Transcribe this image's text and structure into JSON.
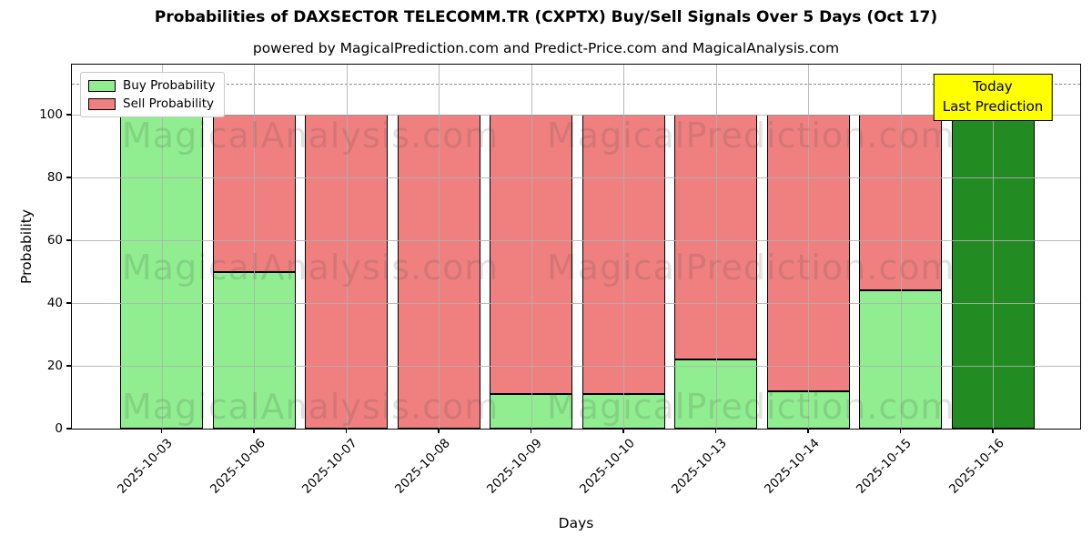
{
  "page": {
    "title": "Probabilities of DAXSECTOR TELECOMM.TR (CXPTX) Buy/Sell Signals Over 5 Days (Oct 17)",
    "subtitle": "powered by MagicalPrediction.com and Predict-Price.com and MagicalAnalysis.com"
  },
  "axes": {
    "xlabel": "Days",
    "ylabel": "Probability"
  },
  "legend": {
    "items": [
      {
        "label": "Buy Probability",
        "color": "#90ee90"
      },
      {
        "label": "Sell Probability",
        "color": "#f08080"
      }
    ]
  },
  "annotation": {
    "line1": "Today",
    "line2": "Last Prediction",
    "bg": "#ffff00"
  },
  "watermarks": {
    "left": "MagicalAnalysis.com",
    "right": "MagicalPrediction.com"
  },
  "colors": {
    "buy": "#90ee90",
    "sell": "#f08080",
    "today_bar": "#228b22",
    "bar_edge": "#000000",
    "grid": "#b0b0b0",
    "dashed_line": "#8c8c8c",
    "annotation_bg": "#ffff00"
  },
  "chart_data": {
    "type": "bar",
    "stacked": true,
    "title": "Probabilities of DAXSECTOR TELECOMM.TR (CXPTX) Buy/Sell Signals Over 5 Days (Oct 17)",
    "subtitle": "powered by MagicalPrediction.com and Predict-Price.com and MagicalAnalysis.com",
    "categories": [
      "2025-10-03",
      "2025-10-06",
      "2025-10-07",
      "2025-10-08",
      "2025-10-09",
      "2025-10-10",
      "2025-10-13",
      "2025-10-14",
      "2025-10-15",
      "2025-10-16"
    ],
    "series": [
      {
        "name": "Buy Probability",
        "color": "#90ee90",
        "values": [
          100,
          50,
          0,
          0,
          11,
          11,
          22,
          12,
          44,
          100
        ]
      },
      {
        "name": "Sell Probability",
        "color": "#f08080",
        "values": [
          0,
          50,
          100,
          100,
          89,
          89,
          78,
          88,
          56,
          0
        ]
      }
    ],
    "today_bar": {
      "index": 9,
      "category": "2025-10-16",
      "color": "#228b22",
      "label": "Today Last Prediction"
    },
    "xlabel": "Days",
    "ylabel": "Probability",
    "ylim": [
      0,
      116
    ],
    "yticks": [
      0,
      20,
      40,
      60,
      80,
      100
    ],
    "hline": {
      "y": 110,
      "style": "dashed",
      "color": "#8c8c8c"
    },
    "grid": true,
    "legend_position": "upper left"
  }
}
